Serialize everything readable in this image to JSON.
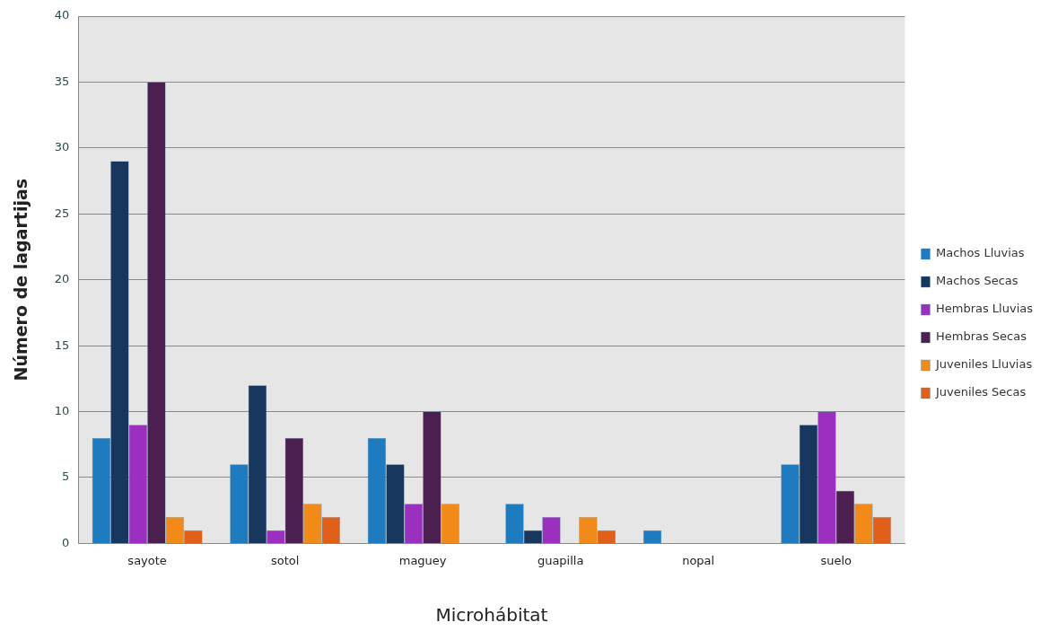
{
  "chart_data": {
    "type": "bar",
    "xlabel": "Microhábitat",
    "ylabel": "Número de lagartijas",
    "categories": [
      "sayote",
      "sotol",
      "maguey",
      "guapilla",
      "nopal",
      "suelo"
    ],
    "series": [
      {
        "name": "Machos Lluvias",
        "color": "#1f7bbf",
        "values": [
          8,
          6,
          8,
          3,
          1,
          6
        ]
      },
      {
        "name": "Machos Secas",
        "color": "#17375e",
        "values": [
          29,
          12,
          6,
          1,
          0,
          9
        ]
      },
      {
        "name": "Hembras Lluvias",
        "color": "#9b30c0",
        "values": [
          9,
          1,
          3,
          2,
          0,
          10
        ]
      },
      {
        "name": "Hembras Secas",
        "color": "#4b2050",
        "values": [
          35,
          8,
          10,
          0,
          0,
          4
        ]
      },
      {
        "name": "Juveniles Lluvias",
        "color": "#f28a1a",
        "values": [
          2,
          3,
          3,
          2,
          0,
          3
        ]
      },
      {
        "name": "Juveniles Secas",
        "color": "#e0601a",
        "values": [
          1,
          2,
          0,
          1,
          0,
          2
        ]
      }
    ],
    "ylim": [
      0,
      40
    ],
    "yticks": [
      0,
      5,
      10,
      15,
      20,
      25,
      30,
      35,
      40
    ],
    "grid": "y",
    "legend": "right"
  }
}
